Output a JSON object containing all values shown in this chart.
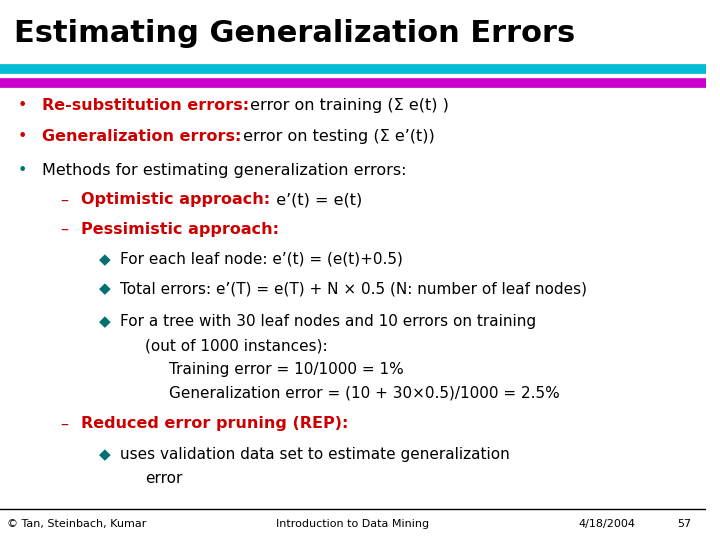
{
  "title": "Estimating Generalization Errors",
  "title_color": "#000000",
  "title_fontsize": 22,
  "bg_color": "#ffffff",
  "bar1_color": "#00bcd4",
  "bar2_color": "#cc00cc",
  "red_color": "#cc0000",
  "teal_color": "#007070",
  "black_color": "#000000",
  "footer_text": "© Tan, Steinbach, Kumar",
  "footer_center": "Introduction to Data Mining",
  "footer_right": "4/18/2004",
  "footer_page": "57"
}
